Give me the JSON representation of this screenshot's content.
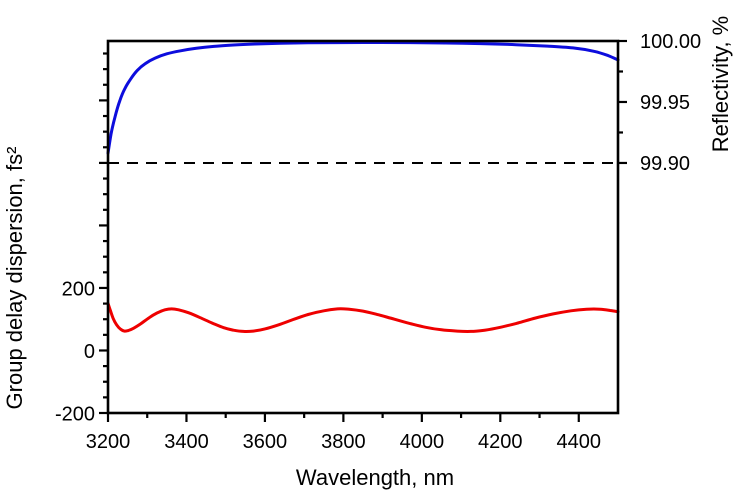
{
  "figure": {
    "background": "#ffffff"
  },
  "chart_data": {
    "type": "line",
    "title": "",
    "grid": false,
    "legend": false,
    "x_axis": {
      "label": "Wavelength, nm",
      "range": [
        3200,
        4500
      ],
      "labeled_ticks": [
        {
          "value": 3200,
          "label": "3200"
        },
        {
          "value": 3400,
          "label": "3400"
        },
        {
          "value": 3600,
          "label": "3600"
        },
        {
          "value": 3800,
          "label": "3800"
        },
        {
          "value": 4000,
          "label": "4000"
        },
        {
          "value": 4200,
          "label": "4200"
        },
        {
          "value": 4400,
          "label": "4400"
        }
      ],
      "minor_ticks": [
        3300,
        3500,
        3700,
        3900,
        4100,
        4300
      ]
    },
    "left_axis": {
      "label": "Group delay dispersion, fs²",
      "range": [
        -200,
        990
      ],
      "major_ticks": [
        -200,
        0,
        200,
        400,
        600,
        800
      ],
      "labeled_ticks": [
        {
          "value": 200,
          "label": "200"
        },
        {
          "value": 0,
          "label": "0"
        },
        {
          "value": -200,
          "label": "-200"
        }
      ],
      "minor_ticks": [
        -150,
        -100,
        -50,
        50,
        100,
        150,
        250,
        300,
        350,
        450,
        500,
        550,
        650,
        700,
        750,
        850,
        900,
        950
      ]
    },
    "right_axis": {
      "label": "Reflectivity, %",
      "range": [
        99.695,
        100.0
      ],
      "major_ticks": [
        99.9,
        99.95,
        100.0
      ],
      "labeled_ticks": [
        {
          "value": 100.0,
          "label": "100.00"
        },
        {
          "value": 99.95,
          "label": "99.95"
        },
        {
          "value": 99.9,
          "label": "99.90"
        }
      ],
      "minor_ticks": [
        99.925,
        99.975
      ]
    },
    "reference_line": {
      "axis": "right",
      "value": 99.9,
      "style": "dashed",
      "color": "#000000"
    },
    "series": [
      {
        "name": "Reflectivity",
        "axis": "right",
        "color": "#0d0ddd",
        "points": [
          [
            3200,
            99.908
          ],
          [
            3208,
            99.924
          ],
          [
            3218,
            99.938
          ],
          [
            3230,
            99.951
          ],
          [
            3243,
            99.961
          ],
          [
            3258,
            99.969
          ],
          [
            3275,
            99.976
          ],
          [
            3295,
            99.9815
          ],
          [
            3320,
            99.986
          ],
          [
            3350,
            99.9895
          ],
          [
            3385,
            99.992
          ],
          [
            3425,
            99.9941
          ],
          [
            3470,
            99.9956
          ],
          [
            3520,
            99.9967
          ],
          [
            3575,
            99.9975
          ],
          [
            3640,
            99.9981
          ],
          [
            3710,
            99.9985
          ],
          [
            3790,
            99.9987
          ],
          [
            3880,
            99.9988
          ],
          [
            3970,
            99.9987
          ],
          [
            4060,
            99.9984
          ],
          [
            4150,
            99.9979
          ],
          [
            4240,
            99.997
          ],
          [
            4320,
            99.9958
          ],
          [
            4390,
            99.9942
          ],
          [
            4440,
            99.9915
          ],
          [
            4475,
            99.988
          ],
          [
            4500,
            99.9845
          ]
        ]
      },
      {
        "name": "Group delay dispersion",
        "axis": "left",
        "color": "#ee0000",
        "points": [
          [
            3200,
            151
          ],
          [
            3206,
            128
          ],
          [
            3213,
            103
          ],
          [
            3222,
            82
          ],
          [
            3232,
            68
          ],
          [
            3242,
            62
          ],
          [
            3252,
            64
          ],
          [
            3265,
            71
          ],
          [
            3283,
            85
          ],
          [
            3305,
            105
          ],
          [
            3325,
            120
          ],
          [
            3345,
            130
          ],
          [
            3362,
            133
          ],
          [
            3380,
            130
          ],
          [
            3405,
            121
          ],
          [
            3435,
            105
          ],
          [
            3465,
            88
          ],
          [
            3495,
            73
          ],
          [
            3520,
            65
          ],
          [
            3545,
            61
          ],
          [
            3570,
            62
          ],
          [
            3600,
            69
          ],
          [
            3635,
            82
          ],
          [
            3672,
            99
          ],
          [
            3710,
            115
          ],
          [
            3750,
            127
          ],
          [
            3785,
            133
          ],
          [
            3815,
            132
          ],
          [
            3850,
            126
          ],
          [
            3890,
            114
          ],
          [
            3930,
            100
          ],
          [
            3970,
            86
          ],
          [
            4010,
            74
          ],
          [
            4050,
            66
          ],
          [
            4090,
            62
          ],
          [
            4125,
            61
          ],
          [
            4160,
            65
          ],
          [
            4200,
            74
          ],
          [
            4245,
            88
          ],
          [
            4290,
            104
          ],
          [
            4335,
            117
          ],
          [
            4380,
            127
          ],
          [
            4420,
            132
          ],
          [
            4455,
            132
          ],
          [
            4480,
            128
          ],
          [
            4500,
            124
          ]
        ]
      }
    ]
  }
}
